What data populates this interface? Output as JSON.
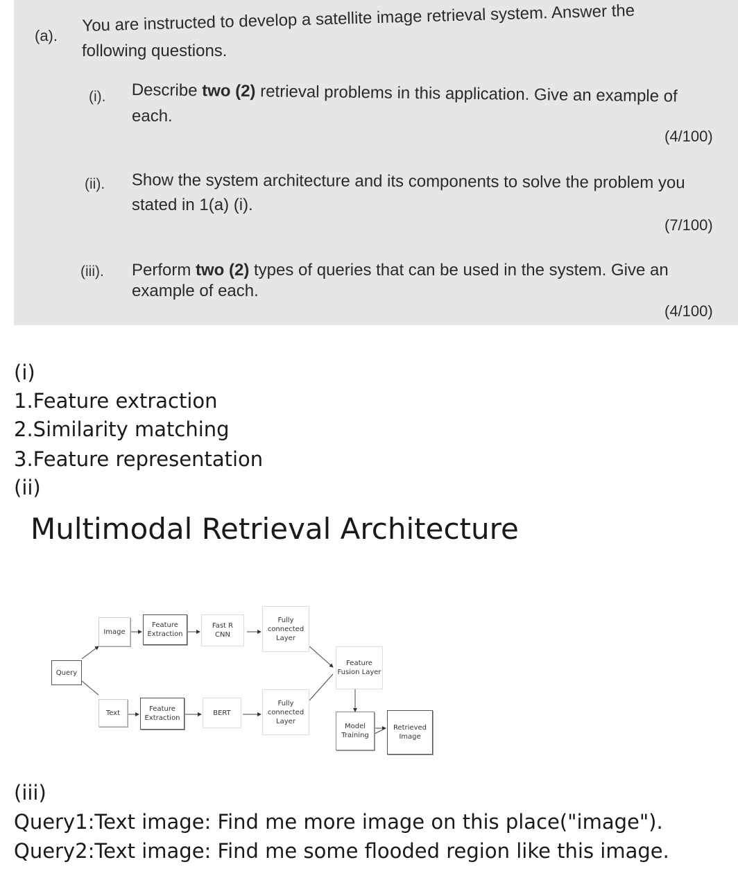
{
  "question": {
    "label": "(a).",
    "intro_line1": "You are instructed to develop a satellite image retrieval system. Answer the",
    "intro_line2": "following questions.",
    "parts": [
      {
        "num": "(i).",
        "line1_pre": "Describe ",
        "line1_bold": "two (2)",
        "line1_post": " retrieval problems in this application. Give an example of",
        "line2": "each.",
        "marks": "(4/100)"
      },
      {
        "num": "(ii).",
        "line1": "Show the system architecture and its components to solve the problem you",
        "line2": "stated in 1(a) (i).",
        "marks": "(7/100)"
      },
      {
        "num": "(iii).",
        "line1_pre": "Perform ",
        "line1_bold": "two (2)",
        "line1_post": " types of queries that can be used in the system. Give an",
        "line2": "example of each.",
        "marks": "(4/100)"
      }
    ]
  },
  "answer": {
    "part1_label": "(i)",
    "part1_items": [
      "1.Feature extraction",
      "2.Similarity matching",
      "3.Feature representation"
    ],
    "part2_label": "(ii)",
    "diagram_title": "Multimodal Retrieval Architecture",
    "part3_label": "(iii)",
    "part3_items": [
      "Query1:Text image: Find me more image on this place(\"image\").",
      "Query2:Text image: Find me some flooded region like this image."
    ]
  },
  "diagram": {
    "query": "Query",
    "image": "Image",
    "text": "Text",
    "feat_extract_img_l1": "Feature",
    "feat_extract_img_l2": "Extraction",
    "feat_extract_txt_l1": "Feature",
    "feat_extract_txt_l2": "Extraction",
    "fastrcnn_l1": "Fast R",
    "fastrcnn_l2": "CNN",
    "bert": "BERT",
    "fc_img_l1": "Fully",
    "fc_img_l2": "connected",
    "fc_img_l3": "Layer",
    "fc_txt_l1": "Fully",
    "fc_txt_l2": "connected",
    "fc_txt_l3": "Layer",
    "fusion_l1": "Feature",
    "fusion_l2": "Fusion Layer",
    "model_l1": "Model",
    "model_l2": "Training",
    "retrieved_l1": "Retrieved",
    "retrieved_l2": "Image"
  }
}
